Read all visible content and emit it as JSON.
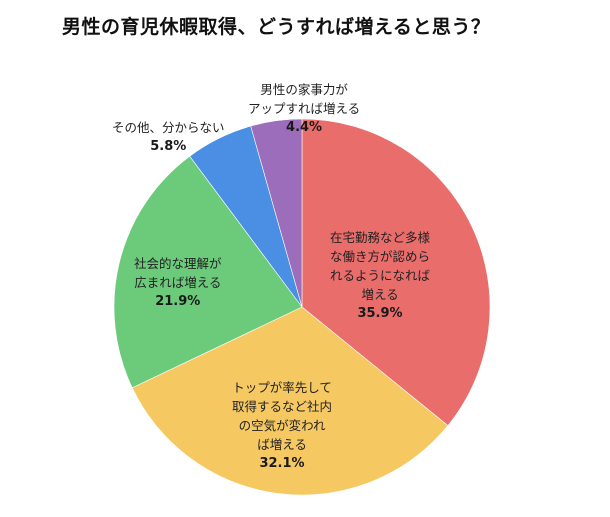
{
  "title": "男性の育児休暇取得、どうすれば増えると思う？",
  "chart_data": {
    "type": "pie",
    "title": "男性の育児休暇取得、どうすれば増えると思う？",
    "start_angle_deg": 0,
    "direction": "clockwise",
    "slices": [
      {
        "label": "在宅勤務など多様な働き方が認められるようになれば増える",
        "value": 35.9,
        "value_label": "35.9%",
        "color": "#E96D6B",
        "lines": [
          "在宅勤務など多様",
          "な働き方が認めら",
          "れるようになれば",
          "増える"
        ]
      },
      {
        "label": "トップが率先して取得するなど社内の空気が変われば増える",
        "value": 32.1,
        "value_label": "32.1%",
        "color": "#F5C862",
        "lines": [
          "トップが率先して",
          "取得するなど社内",
          "の空気が変われ",
          "ば増える"
        ]
      },
      {
        "label": "社会的な理解が広まれば増える",
        "value": 21.9,
        "value_label": "21.9%",
        "color": "#6CCB7B",
        "lines": [
          "社会的な理解が",
          "広まれば増える"
        ]
      },
      {
        "label": "その他、分からない",
        "value": 5.8,
        "value_label": "5.8%",
        "color": "#4A8FE3",
        "lines": [
          "その他、分からない"
        ]
      },
      {
        "label": "男性の家事力がアップすれば増える",
        "value": 4.4,
        "value_label": "4.4%",
        "color": "#9B6DBA",
        "lines": [
          "男性の家事力が",
          "アップすれば増える"
        ]
      }
    ],
    "legend": "none (labels on/near slices)"
  }
}
